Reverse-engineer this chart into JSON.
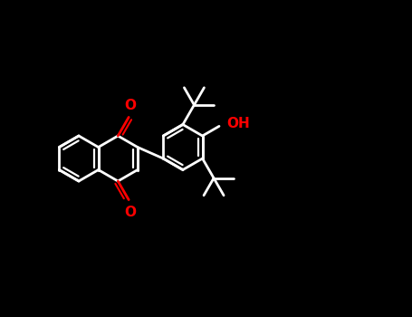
{
  "bg_color": "#000000",
  "lc": "#ffffff",
  "oc": "#ff0000",
  "lw": 2.0,
  "bl": 0.072,
  "qcx": 0.22,
  "qcy": 0.5,
  "o1_label": "O",
  "o4_label": "O",
  "oh_label": "OH",
  "font_size": 11
}
